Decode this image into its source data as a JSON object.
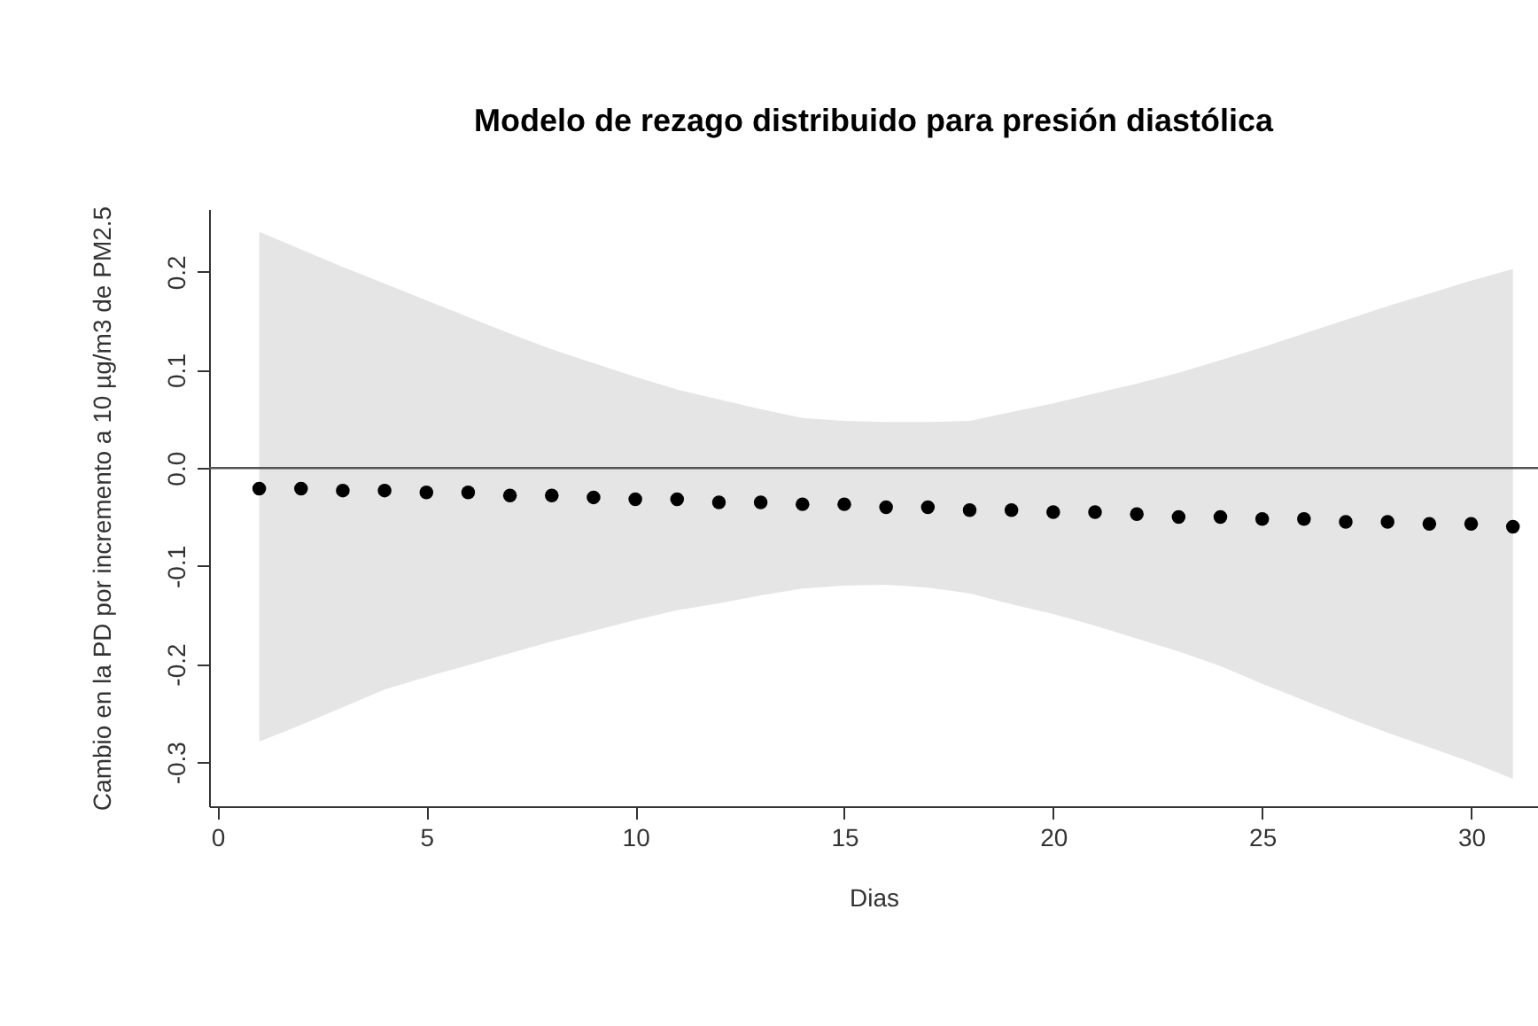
{
  "chart_data": {
    "type": "scatter",
    "title": "Modelo de rezago distribuido para presión diastólica",
    "xlabel": "Dias",
    "ylabel": "Cambio en la PD por incremento a 10 µg/m3 de PM2.5",
    "x": [
      1,
      2,
      3,
      4,
      5,
      6,
      7,
      8,
      9,
      10,
      11,
      12,
      13,
      14,
      15,
      16,
      17,
      18,
      19,
      20,
      21,
      22,
      23,
      24,
      25,
      26,
      27,
      28,
      29,
      30,
      31
    ],
    "series": [
      {
        "color": "#000000",
        "values": [
          -0.021,
          -0.021,
          -0.023,
          -0.023,
          -0.025,
          -0.025,
          -0.028,
          -0.028,
          -0.03,
          -0.032,
          -0.032,
          -0.035,
          -0.035,
          -0.037,
          -0.037,
          -0.04,
          -0.04,
          -0.043,
          -0.043,
          -0.045,
          -0.045,
          -0.047,
          -0.05,
          -0.05,
          -0.052,
          -0.052,
          -0.055,
          -0.055,
          -0.057,
          -0.057,
          -0.06
        ],
        "upper": [
          0.241,
          0.223,
          0.205,
          0.188,
          0.171,
          0.154,
          0.137,
          0.121,
          0.107,
          0.093,
          0.08,
          0.07,
          0.06,
          0.051,
          0.048,
          0.047,
          0.047,
          0.048,
          0.057,
          0.066,
          0.076,
          0.086,
          0.097,
          0.11,
          0.123,
          0.137,
          0.151,
          0.165,
          0.178,
          0.191,
          0.203
        ],
        "lower": [
          -0.279,
          -0.262,
          -0.244,
          -0.226,
          -0.213,
          -0.201,
          -0.189,
          -0.177,
          -0.166,
          -0.155,
          -0.145,
          -0.138,
          -0.13,
          -0.123,
          -0.12,
          -0.119,
          -0.122,
          -0.128,
          -0.139,
          -0.149,
          -0.161,
          -0.174,
          -0.187,
          -0.202,
          -0.22,
          -0.237,
          -0.254,
          -0.27,
          -0.285,
          -0.3,
          -0.317
        ]
      }
    ],
    "xlim": [
      -0.2,
      31.6
    ],
    "ylim": [
      -0.345,
      0.264
    ],
    "xticks": [
      0,
      5,
      10,
      15,
      20,
      25,
      30
    ],
    "yticks": [
      {
        "value": -0.3,
        "label": "-0.3"
      },
      {
        "value": -0.2,
        "label": "-0.2"
      },
      {
        "value": -0.1,
        "label": "-0.1"
      },
      {
        "value": 0,
        "label": "0.0"
      },
      {
        "value": 0.1,
        "label": "0.1"
      },
      {
        "value": 0.2,
        "label": "0.2"
      }
    ],
    "ref_lines": [
      {
        "axis": "y",
        "value": 0,
        "color": "#555555"
      }
    ],
    "marker": "circle",
    "grid": false
  }
}
